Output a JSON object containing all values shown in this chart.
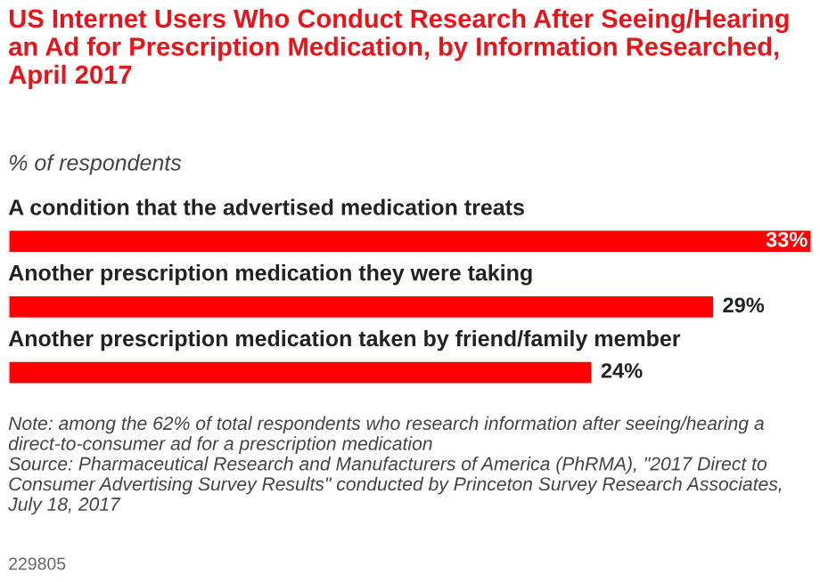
{
  "chart_data": {
    "type": "bar",
    "orientation": "horizontal",
    "title": "US Internet Users Who Conduct Research After Seeing/Hearing an Ad for Prescription Medication, by Information Researched, April 2017",
    "subtitle": "% of respondents",
    "categories": [
      "A condition that the advertised medication treats",
      "Another prescription medication they were taking",
      "Another prescription medication taken by friend/family member"
    ],
    "values": [
      33,
      29,
      24
    ],
    "value_labels": [
      "33%",
      "29%",
      "24%"
    ],
    "color": "#ff0000",
    "annotations": [
      "Note: among the 62% of total respondents who research information after seeing/hearing a direct-to-consumer ad for a prescription medication\nSource: Pharmaceutical Research and Manufacturers of America (PhRMA), \"2017 Direct to Consumer Advertising Survey Results\" conducted by Princeton Survey Research Associates, July 18, 2017",
      "229805"
    ]
  }
}
